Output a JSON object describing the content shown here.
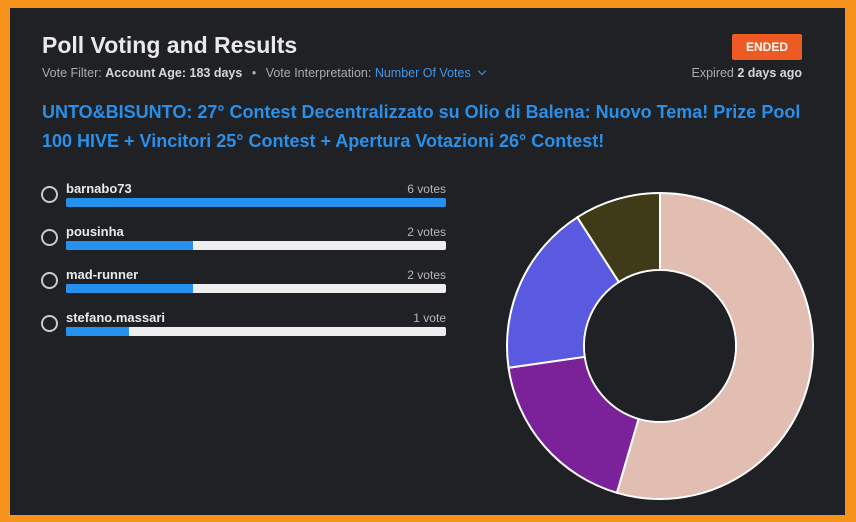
{
  "header": {
    "title": "Poll Voting and Results",
    "status_badge": "ENDED",
    "vote_filter_label": "Vote Filter:",
    "account_age_label": "Account Age:",
    "account_age_value": "183 days",
    "interpretation_label": "Vote Interpretation:",
    "interpretation_value": "Number Of Votes",
    "expired_label": "Expired",
    "expired_value": "2 days ago"
  },
  "post_title": "UNTO&BISUNTO: 27° Contest Decentralizzato su Olio di Balena: Nuovo Tema! Prize Pool 100 HIVE + Vincitori 25° Contest + Apertura Votazioni 26° Contest!",
  "options": [
    {
      "name": "barnabo73",
      "votes_label": "6 votes",
      "share": 1.0
    },
    {
      "name": "pousinha",
      "votes_label": "2 votes",
      "share": 0.333
    },
    {
      "name": "mad-runner",
      "votes_label": "2 votes",
      "share": 0.333
    },
    {
      "name": "stefano.massari",
      "votes_label": "1 vote",
      "share": 0.167
    }
  ],
  "chart_data": {
    "type": "pie",
    "categories": [
      "barnabo73",
      "pousinha",
      "mad-runner",
      "stefano.massari"
    ],
    "values": [
      6,
      2,
      2,
      1
    ],
    "colors": [
      "#e1bdb2",
      "#7b229b",
      "#5a5ae0",
      "#3f3b19"
    ]
  },
  "colors": {
    "accent": "#2b8fe8",
    "badge": "#ee5a24",
    "border": "#f7931a",
    "bar_fill": "#2690ef"
  }
}
